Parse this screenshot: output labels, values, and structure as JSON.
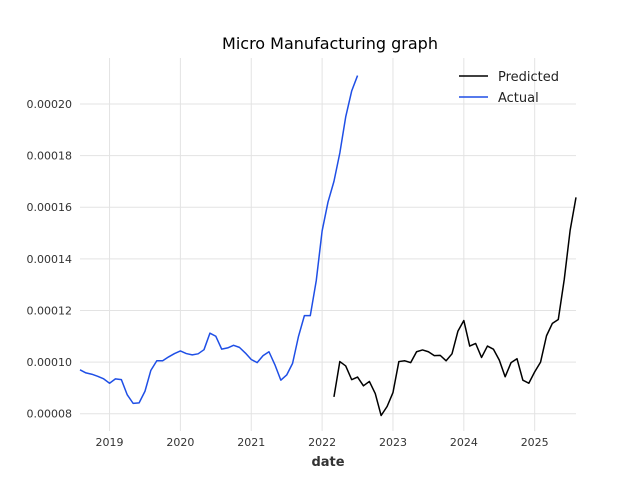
{
  "chart_data": {
    "type": "line",
    "title": "Micro Manufacturing graph",
    "xlabel": "date",
    "ylabel": "",
    "x_range": [
      2018.583,
      2025.583
    ],
    "ylim": [
      7.33e-05,
      0.0002178
    ],
    "x_ticks": [
      {
        "value": 2019,
        "label": "2019"
      },
      {
        "value": 2020,
        "label": "2020"
      },
      {
        "value": 2021,
        "label": "2021"
      },
      {
        "value": 2022,
        "label": "2022"
      },
      {
        "value": 2023,
        "label": "2023"
      },
      {
        "value": 2024,
        "label": "2024"
      },
      {
        "value": 2025,
        "label": "2025"
      }
    ],
    "y_ticks": [
      {
        "value": 8e-05,
        "label": "0.00008"
      },
      {
        "value": 0.0001,
        "label": "0.00010"
      },
      {
        "value": 0.00012,
        "label": "0.00012"
      },
      {
        "value": 0.00014,
        "label": "0.00014"
      },
      {
        "value": 0.00016,
        "label": "0.00016"
      },
      {
        "value": 0.00018,
        "label": "0.00018"
      },
      {
        "value": 0.0002,
        "label": "0.00020"
      }
    ],
    "grid": true,
    "legend_position": "top-right",
    "series": [
      {
        "name": "Predicted",
        "color": "#000000",
        "x": [
          2022.167,
          2022.25,
          2022.333,
          2022.417,
          2022.5,
          2022.583,
          2022.667,
          2022.75,
          2022.833,
          2022.917,
          2023.0,
          2023.083,
          2023.167,
          2023.25,
          2023.333,
          2023.417,
          2023.5,
          2023.583,
          2023.667,
          2023.75,
          2023.833,
          2023.917,
          2024.0,
          2024.083,
          2024.167,
          2024.25,
          2024.333,
          2024.417,
          2024.5,
          2024.583,
          2024.667,
          2024.75,
          2024.833,
          2024.917,
          2025.0,
          2025.083,
          2025.167,
          2025.25,
          2025.333,
          2025.417,
          2025.5,
          2025.583
        ],
        "values": [
          8.65e-05,
          0.0001002,
          9.85e-05,
          9.32e-05,
          9.42e-05,
          9.08e-05,
          9.25e-05,
          8.78e-05,
          7.93e-05,
          8.28e-05,
          8.82e-05,
          0.0001002,
          0.0001005,
          9.98e-05,
          0.000104,
          0.0001047,
          0.000104,
          0.0001025,
          0.0001026,
          0.0001005,
          0.0001032,
          0.000112,
          0.0001161,
          0.0001062,
          0.0001072,
          0.0001018,
          0.0001062,
          0.000105,
          0.0001008,
          9.43e-05,
          9.98e-05,
          0.0001013,
          9.3e-05,
          9.18e-05,
          9.62e-05,
          0.0001,
          0.0001102,
          0.000115,
          0.0001165,
          0.000132,
          0.000151,
          0.0001638
        ]
      },
      {
        "name": "Actual",
        "color": "#1f4fe6",
        "x": [
          2018.583,
          2018.667,
          2018.75,
          2018.833,
          2018.917,
          2019.0,
          2019.083,
          2019.167,
          2019.25,
          2019.333,
          2019.417,
          2019.5,
          2019.583,
          2019.667,
          2019.75,
          2019.833,
          2019.917,
          2020.0,
          2020.083,
          2020.167,
          2020.25,
          2020.333,
          2020.417,
          2020.5,
          2020.583,
          2020.667,
          2020.75,
          2020.833,
          2020.917,
          2021.0,
          2021.083,
          2021.167,
          2021.25,
          2021.333,
          2021.417,
          2021.5,
          2021.583,
          2021.667,
          2021.75,
          2021.833,
          2021.917,
          2022.0,
          2022.083,
          2022.167,
          2022.25,
          2022.333,
          2022.417,
          2022.5
        ],
        "values": [
          9.7e-05,
          9.58e-05,
          9.53e-05,
          9.45e-05,
          9.35e-05,
          9.18e-05,
          9.35e-05,
          9.32e-05,
          8.73e-05,
          8.4e-05,
          8.42e-05,
          8.87e-05,
          9.68e-05,
          0.0001005,
          0.0001005,
          0.000102,
          0.0001033,
          0.0001043,
          0.0001033,
          0.0001028,
          0.0001032,
          0.0001048,
          0.0001112,
          0.00011,
          0.000105,
          0.0001055,
          0.0001065,
          0.0001057,
          0.0001035,
          0.000101,
          9.98e-05,
          0.0001025,
          0.000104,
          9.9e-05,
          9.3e-05,
          9.5e-05,
          9.95e-05,
          0.00011,
          0.000118,
          0.000118,
          0.0001315,
          0.0001508,
          0.000162,
          0.00017,
          0.000181,
          0.000195,
          0.000205,
          0.000211
        ]
      }
    ]
  }
}
